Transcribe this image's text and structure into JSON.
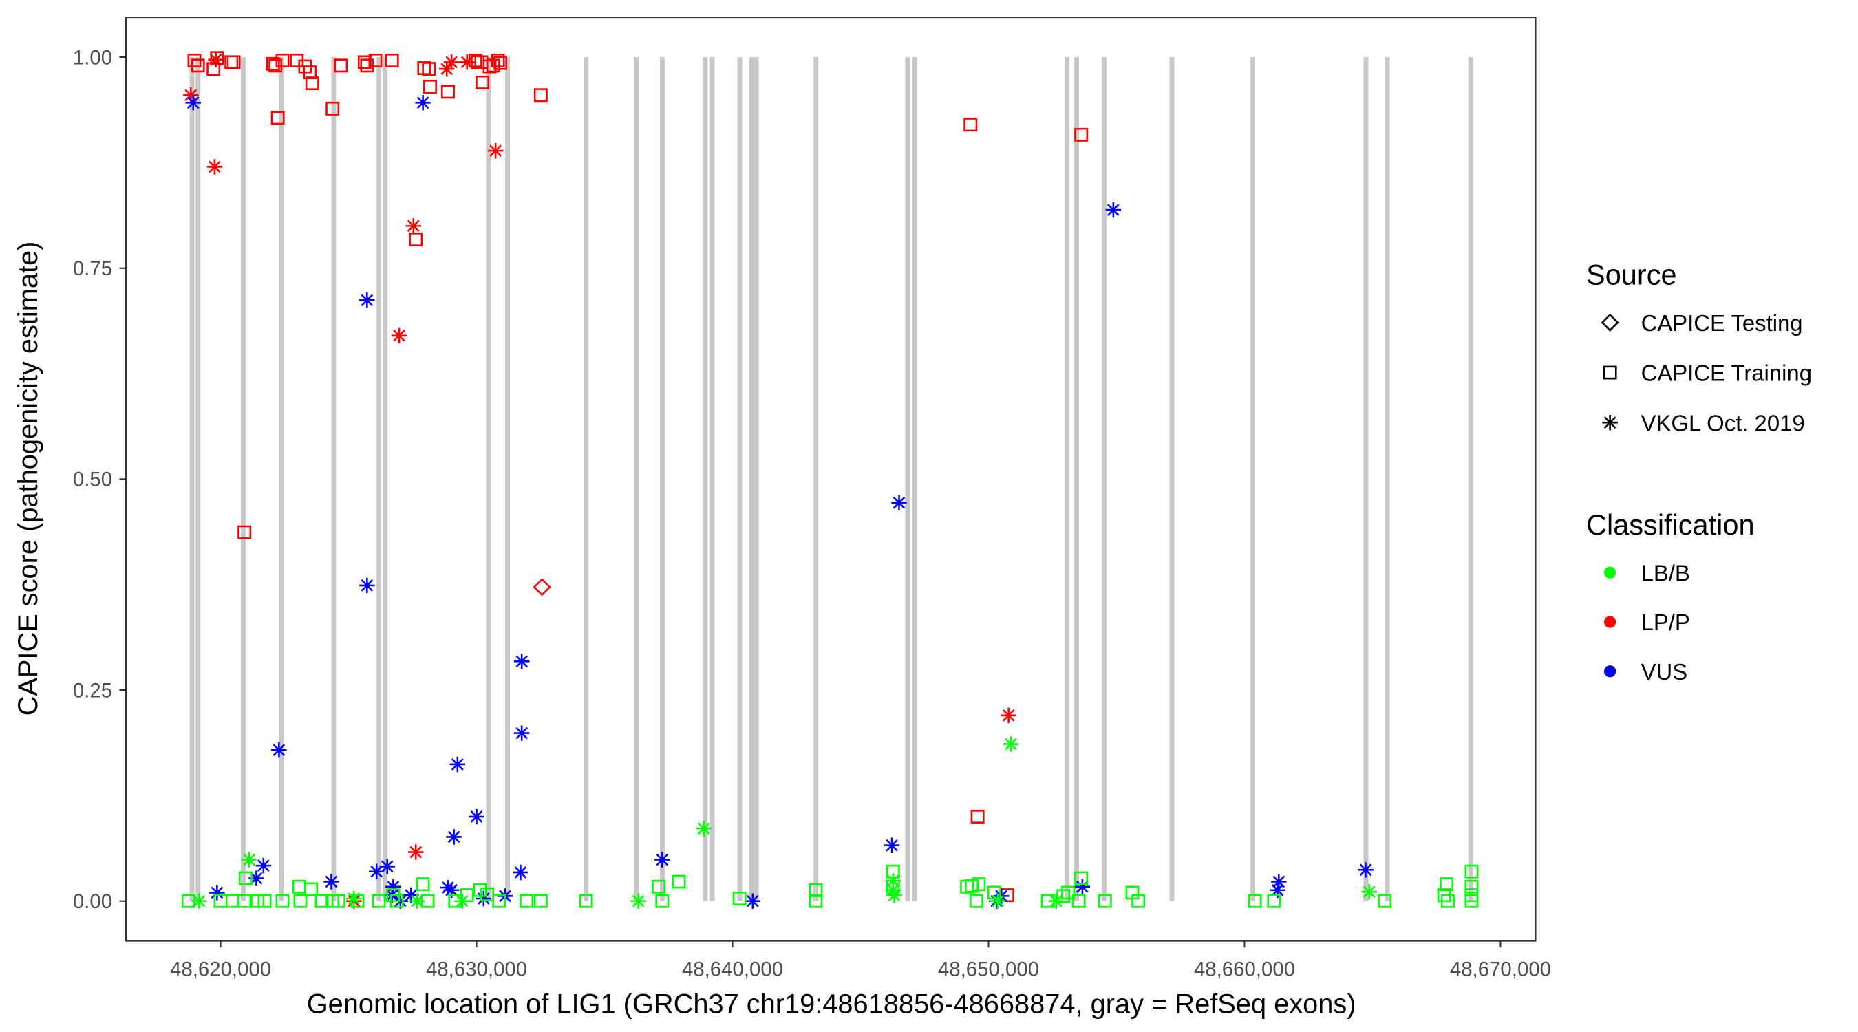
{
  "chart_data": {
    "type": "scatter",
    "xlabel": "Genomic location of LIG1 (GRCh37 chr19:48618856-48668874, gray = RefSeq exons)",
    "ylabel": "CAPICE score (pathogenicity estimate)",
    "xlim": [
      48618200,
      48670700
    ],
    "ylim": [
      -0.046,
      1.05
    ],
    "x_ticks": [
      48620000,
      48630000,
      48640000,
      48650000,
      48660000,
      48670000
    ],
    "x_tick_labels": [
      "48,620,000",
      "48,630,000",
      "48,640,000",
      "48,650,000",
      "48,660,000",
      "48,670,000"
    ],
    "y_ticks": [
      0,
      0.25,
      0.5,
      0.75,
      1.0
    ],
    "y_tick_labels": [
      "0.00",
      "0.25",
      "0.50",
      "0.75",
      "1.00"
    ],
    "grid": false,
    "legend_placement": "right",
    "legend": {
      "source_title": "Source",
      "sources": [
        {
          "key": "testing",
          "label": "CAPICE Testing",
          "shape": "diamond"
        },
        {
          "key": "training",
          "label": "CAPICE Training",
          "shape": "square"
        },
        {
          "key": "vkgl",
          "label": "VKGL Oct. 2019",
          "shape": "asterisk"
        }
      ],
      "class_title": "Classification",
      "classes": [
        {
          "key": "LB/B",
          "label": "LB/B",
          "color": "#00FF00"
        },
        {
          "key": "LP/P",
          "label": "LP/P",
          "color": "#FF0000"
        },
        {
          "key": "VUS",
          "label": "VUS",
          "color": "#0000FF"
        }
      ]
    },
    "exon_color": "#C8C8C8",
    "exons": [
      48618884,
      48619116,
      48620884,
      48622372,
      48624419,
      48626186,
      48626419,
      48630465,
      48631209,
      48634279,
      48636233,
      48637256,
      48638930,
      48639209,
      48640279,
      48640744,
      48640930,
      48643256,
      48646837,
      48647116,
      48653070,
      48653442,
      48654512,
      48657163,
      48660326,
      48664744,
      48665581,
      48668837
    ],
    "series": [
      {
        "source": "training",
        "class": "LP/P",
        "points": [
          [
            48618977,
            0.996
          ],
          [
            48619116,
            0.99
          ],
          [
            48619721,
            0.986
          ],
          [
            48619860,
            0.999
          ],
          [
            48620419,
            0.994
          ],
          [
            48620512,
            0.994
          ],
          [
            48622046,
            0.992
          ],
          [
            48622139,
            0.99
          ],
          [
            48622418,
            0.996
          ],
          [
            48622976,
            0.996
          ],
          [
            48623302,
            0.989
          ],
          [
            48623488,
            0.982
          ],
          [
            48623581,
            0.969
          ],
          [
            48624371,
            0.939
          ],
          [
            48624697,
            0.99
          ],
          [
            48625627,
            0.994
          ],
          [
            48625720,
            0.99
          ],
          [
            48626045,
            0.996
          ],
          [
            48626696,
            0.996
          ],
          [
            48627952,
            0.987
          ],
          [
            48628138,
            0.986
          ],
          [
            48628184,
            0.965
          ],
          [
            48628882,
            0.959
          ],
          [
            48629951,
            0.996
          ],
          [
            48630044,
            0.994
          ],
          [
            48630184,
            0.994
          ],
          [
            48630230,
            0.97
          ],
          [
            48630509,
            0.989
          ],
          [
            48630649,
            0.99
          ],
          [
            48630835,
            0.996
          ],
          [
            48630928,
            0.993
          ],
          [
            48632509,
            0.955
          ],
          [
            48622232,
            0.928
          ],
          [
            48620930,
            0.437
          ],
          [
            48627626,
            0.784
          ],
          [
            48649295,
            0.92
          ],
          [
            48653620,
            0.908
          ],
          [
            48649574,
            0.1
          ],
          [
            48650737,
            0.007
          ]
        ]
      },
      {
        "source": "vkgl",
        "class": "LP/P",
        "points": [
          [
            48618837,
            0.955
          ],
          [
            48619767,
            0.87
          ],
          [
            48619814,
            0.997
          ],
          [
            48627533,
            0.8
          ],
          [
            48626975,
            0.67
          ],
          [
            48627626,
            0.058
          ],
          [
            48628835,
            0.986
          ],
          [
            48629021,
            0.994
          ],
          [
            48629626,
            0.994
          ],
          [
            48630742,
            0.889
          ],
          [
            48625208,
            0.0
          ],
          [
            48650783,
            0.22
          ]
        ]
      },
      {
        "source": "testing",
        "class": "LP/P",
        "points": [
          [
            48632555,
            0.372
          ]
        ]
      },
      {
        "source": "vkgl",
        "class": "VUS",
        "points": [
          [
            48618930,
            0.946
          ],
          [
            48627905,
            0.946
          ],
          [
            48625720,
            0.712
          ],
          [
            48654875,
            0.819
          ],
          [
            48646505,
            0.472
          ],
          [
            48625720,
            0.374
          ],
          [
            48631765,
            0.284
          ],
          [
            48631765,
            0.199
          ],
          [
            48622279,
            0.179
          ],
          [
            48629254,
            0.162
          ],
          [
            48629998,
            0.1
          ],
          [
            48629114,
            0.076
          ],
          [
            48637252,
            0.049
          ],
          [
            48646226,
            0.066
          ],
          [
            48631718,
            0.034
          ],
          [
            48664733,
            0.037
          ],
          [
            48621674,
            0.042
          ],
          [
            48621395,
            0.027
          ],
          [
            48619860,
            0.01
          ],
          [
            48624325,
            0.023
          ],
          [
            48626092,
            0.035
          ],
          [
            48626510,
            0.041
          ],
          [
            48626743,
            0.017
          ],
          [
            48627022,
            0.0
          ],
          [
            48626696,
            0.007
          ],
          [
            48627440,
            0.007
          ],
          [
            48628882,
            0.016
          ],
          [
            48629021,
            0.013
          ],
          [
            48630277,
            0.003
          ],
          [
            48631114,
            0.006
          ],
          [
            48640786,
            0.0
          ],
          [
            48650318,
            0.0
          ],
          [
            48650504,
            0.006
          ],
          [
            48653666,
            0.017
          ],
          [
            48661339,
            0.023
          ],
          [
            48661292,
            0.013
          ]
        ]
      },
      {
        "source": "vkgl",
        "class": "LB/B",
        "points": [
          [
            48621116,
            0.049
          ],
          [
            48638879,
            0.086
          ],
          [
            48650876,
            0.186
          ],
          [
            48619163,
            0.0
          ],
          [
            48625208,
            0.003
          ],
          [
            48629440,
            0.0
          ],
          [
            48636322,
            0.0
          ],
          [
            48646273,
            0.024
          ],
          [
            48646273,
            0.013
          ],
          [
            48646319,
            0.007
          ],
          [
            48652643,
            0.0
          ],
          [
            48664873,
            0.011
          ],
          [
            48627673,
            0.0
          ],
          [
            48650365,
            0.0
          ]
        ]
      },
      {
        "source": "training",
        "class": "LB/B",
        "points": [
          [
            48618744,
            0
          ],
          [
            48620000,
            0
          ],
          [
            48620465,
            0
          ],
          [
            48620977,
            0.027
          ],
          [
            48620930,
            0
          ],
          [
            48621442,
            0
          ],
          [
            48621721,
            0
          ],
          [
            48622418,
            0
          ],
          [
            48623069,
            0.017
          ],
          [
            48623116,
            0
          ],
          [
            48623534,
            0.014
          ],
          [
            48623953,
            0
          ],
          [
            48624371,
            0
          ],
          [
            48624604,
            0
          ],
          [
            48625348,
            0
          ],
          [
            48626185,
            0
          ],
          [
            48626743,
            0.007
          ],
          [
            48626882,
            0
          ],
          [
            48627905,
            0.02
          ],
          [
            48628091,
            0
          ],
          [
            48629161,
            0
          ],
          [
            48629626,
            0.007
          ],
          [
            48630137,
            0.013
          ],
          [
            48630416,
            0.008
          ],
          [
            48630881,
            0
          ],
          [
            48631951,
            0
          ],
          [
            48632509,
            0
          ],
          [
            48634276,
            0
          ],
          [
            48637112,
            0.017
          ],
          [
            48637252,
            0
          ],
          [
            48637903,
            0.023
          ],
          [
            48640274,
            0.003
          ],
          [
            48643250,
            0.013
          ],
          [
            48643250,
            0
          ],
          [
            48646273,
            0.035
          ],
          [
            48646273,
            0.017
          ],
          [
            48649156,
            0.017
          ],
          [
            48649342,
            0.018
          ],
          [
            48649621,
            0.02
          ],
          [
            48649528,
            0
          ],
          [
            48650225,
            0.01
          ],
          [
            48652318,
            0
          ],
          [
            48652922,
            0.006
          ],
          [
            48653108,
            0.01
          ],
          [
            48653527,
            0
          ],
          [
            48653620,
            0.027
          ],
          [
            48654550,
            0
          ],
          [
            48655619,
            0.01
          ],
          [
            48655852,
            0
          ],
          [
            48660409,
            0
          ],
          [
            48661153,
            0
          ],
          [
            48665477,
            0
          ],
          [
            48667895,
            0.02
          ],
          [
            48667942,
            0
          ],
          [
            48668872,
            0.035
          ],
          [
            48668872,
            0.017
          ],
          [
            48668872,
            0
          ],
          [
            48667802,
            0.007
          ],
          [
            48668872,
            0.007
          ]
        ]
      }
    ]
  }
}
